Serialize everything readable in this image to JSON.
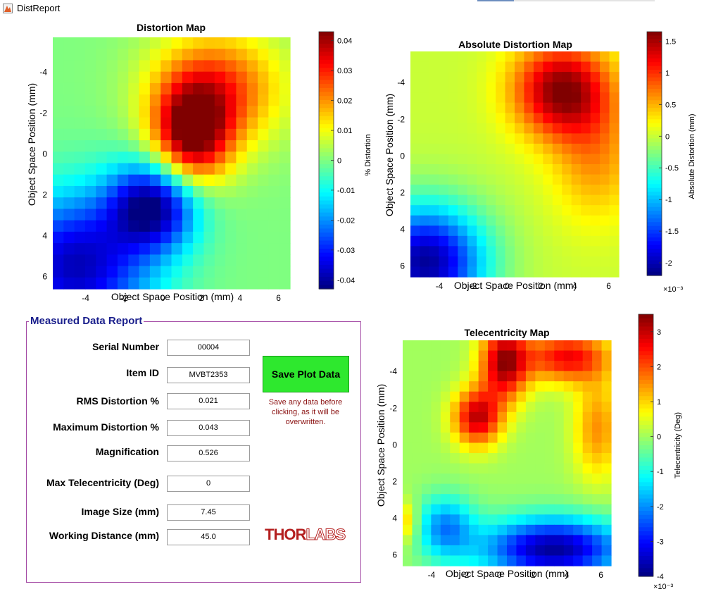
{
  "window": {
    "title": "DistReport"
  },
  "plots": [
    {
      "key": "distortion",
      "title": "Distortion Map",
      "xlabel": "Object Space Position (mm)",
      "ylabel": "Object Space Position (mm)",
      "colorbar_label": "% Distortion",
      "exponent_label": ""
    },
    {
      "key": "absolute",
      "title": "Absolute Distortion Map",
      "xlabel": "Object Space Position (mm)",
      "ylabel": "Object Space Position (mm)",
      "colorbar_label": "Absolute Distortion (mm)",
      "exponent_label": "×10⁻³"
    },
    {
      "key": "telecentricity",
      "title": "Telecentricity Map",
      "xlabel": "Object Space Position (mm)",
      "ylabel": "Object Space Position (mm)",
      "colorbar_label": "Telecentricity (Deg)",
      "exponent_label": "×10⁻³"
    }
  ],
  "report": {
    "title": "Measured Data Report",
    "fields": [
      {
        "label": "Serial Number",
        "value": "00004"
      },
      {
        "label": "Item ID",
        "value": "MVBT2353"
      },
      {
        "label": "RMS Distortion %",
        "value": "0.021"
      },
      {
        "label": "Maximum Distortion %",
        "value": "0.043"
      },
      {
        "label": "Magnification",
        "value": "0.526"
      },
      {
        "label": "Max Telecentricity (Deg)",
        "value": "0"
      },
      {
        "label": "Image Size (mm)",
        "value": "7.45"
      },
      {
        "label": "Working Distance (mm)",
        "value": "45.0"
      }
    ],
    "save_button_label": "Save Plot Data",
    "save_note": "Save any data before clicking, as it will be overwritten.",
    "logo": {
      "part_a": "THOR",
      "part_b": "LABS"
    }
  },
  "chart_data": [
    {
      "type": "heatmap",
      "title": "Distortion Map",
      "xlabel": "Object Space Position (mm)",
      "ylabel": "Object Space Position (mm)",
      "colorbar_label": "% Distortion",
      "xlim": [
        -5.7,
        6.6
      ],
      "ylim": [
        -5.7,
        6.6
      ],
      "y_reversed": true,
      "x_ticks": [
        -4,
        -2,
        0,
        2,
        4,
        6
      ],
      "y_ticks": [
        -4,
        -2,
        0,
        2,
        4,
        6
      ],
      "clim": [
        -0.043,
        0.043
      ],
      "colorbar_ticks": [
        0.04,
        0.03,
        0.02,
        0.01,
        0,
        -0.01,
        -0.02,
        -0.03,
        -0.04
      ],
      "colormap": "jet",
      "grid_size": 22,
      "features": [
        {
          "x": 1.5,
          "y": -0.9,
          "value": 0.041,
          "sx": 1.4,
          "sy": 1.7
        },
        {
          "x": 2.8,
          "y": -3.2,
          "value": 0.027,
          "sx": 2.4,
          "sy": 2.0
        },
        {
          "x": -0.5,
          "y": 2.5,
          "value": -0.04,
          "sx": 1.6,
          "sy": 1.5
        },
        {
          "x": -4.5,
          "y": 5.5,
          "value": -0.038,
          "sx": 2.8,
          "sy": 2.5
        }
      ]
    },
    {
      "type": "heatmap",
      "title": "Absolute Distortion Map",
      "xlabel": "Object Space Position (mm)",
      "ylabel": "Object Space Position (mm)",
      "colorbar_label": "Absolute Distortion (mm)",
      "xlim": [
        -5.7,
        6.6
      ],
      "ylim": [
        -5.7,
        6.6
      ],
      "y_reversed": true,
      "x_ticks": [
        -4,
        -2,
        0,
        2,
        4,
        6
      ],
      "y_ticks": [
        -4,
        -2,
        0,
        2,
        4,
        6
      ],
      "clim": [
        -2.2,
        1.65
      ],
      "colorbar_ticks": [
        1.5,
        1,
        0.5,
        0,
        -0.5,
        -1,
        -1.5,
        -2
      ],
      "colorbar_scale": "×10⁻³",
      "colormap": "jet",
      "grid_size": 22,
      "features": [
        {
          "x": 3.2,
          "y": -3.6,
          "value": 1.6,
          "sx": 2.0,
          "sy": 1.8
        },
        {
          "x": 5.2,
          "y": 0.0,
          "value": 0.6,
          "sx": 1.8,
          "sy": 2.5
        },
        {
          "x": -4.8,
          "y": 5.8,
          "value": -2.1,
          "sx": 2.5,
          "sy": 2.2
        }
      ]
    },
    {
      "type": "heatmap",
      "title": "Telecentricity Map",
      "xlabel": "Object Space Position (mm)",
      "ylabel": "Object Space Position (mm)",
      "colorbar_label": "Telecentricity (Deg)",
      "xlim": [
        -5.7,
        6.6
      ],
      "ylim": [
        -5.7,
        6.6
      ],
      "y_reversed": true,
      "x_ticks": [
        -4,
        -2,
        0,
        2,
        4,
        6
      ],
      "y_ticks": [
        -4,
        -2,
        0,
        2,
        4,
        6
      ],
      "clim": [
        -4,
        3.5
      ],
      "colorbar_ticks": [
        3,
        2,
        1,
        0,
        -1,
        -2,
        -3,
        -4
      ],
      "colorbar_scale": "×10⁻³",
      "colormap": "jet",
      "grid_size": 22,
      "features": [
        {
          "x": 0.3,
          "y": -4.5,
          "value": 3.2,
          "sx": 1.0,
          "sy": 1.5
        },
        {
          "x": -1.3,
          "y": -1.5,
          "value": 3.0,
          "sx": 1.0,
          "sy": 1.1
        },
        {
          "x": 4.0,
          "y": -4.8,
          "value": 2.6,
          "sx": 1.8,
          "sy": 1.0
        },
        {
          "x": 5.8,
          "y": -0.9,
          "value": 1.5,
          "sx": 1.0,
          "sy": 2.0
        },
        {
          "x": 3.2,
          "y": 5.7,
          "value": -3.8,
          "sx": 3.0,
          "sy": 1.2
        },
        {
          "x": -3.2,
          "y": 4.5,
          "value": -2.0,
          "sx": 1.2,
          "sy": 1.2
        },
        {
          "x": -5.5,
          "y": 4.2,
          "value": 1.2,
          "sx": 0.5,
          "sy": 0.8
        }
      ]
    }
  ]
}
